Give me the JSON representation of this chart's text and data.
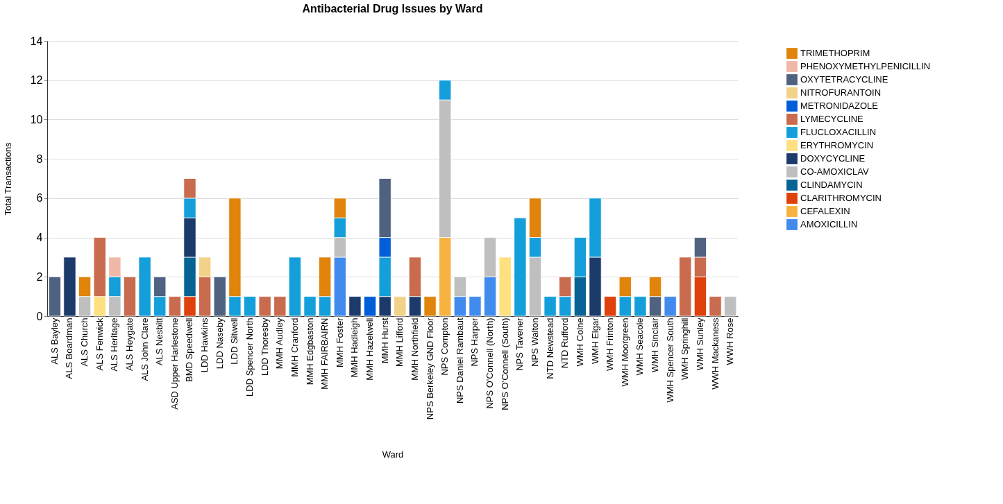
{
  "chart_data": {
    "type": "bar",
    "title": "Antibacterial Drug Issues by Ward",
    "xlabel": "Ward",
    "ylabel": "Total Transactions",
    "stacked": true,
    "legend": "right",
    "grid": "y",
    "ylim": [
      0,
      14
    ],
    "yticks": [
      0,
      2,
      4,
      6,
      8,
      10,
      12,
      14
    ],
    "categories": [
      "ALS Bayley",
      "ALS Boardman",
      "ALS Church",
      "ALS Fenwick",
      "ALS Heritage",
      "ALS Heygate",
      "ALS John Clare",
      "ALS Nesbitt",
      "ASD Upper Harlestone",
      "BMD Speedwell",
      "LDD Hawkins",
      "LDD Naseby",
      "LDD Sitwell",
      "LDD Spencer North",
      "LDD Thoresby",
      "MMH Audley",
      "MMH Cranford",
      "MMH Edgbaston",
      "MMH FAIRBAIRN",
      "MMH Foster",
      "MMH Hadleigh",
      "MMH Hazelwell",
      "MMH Hurst",
      "MMH Lifford",
      "MMH Northfield",
      "NPS Berkeley GND Floor",
      "NPS Compton",
      "NPS Daniel Rambaut",
      "NPS Harper",
      "NPS O'Connell (North)",
      "NPS O'Connell (South)",
      "NPS Tavener",
      "NPS Walton",
      "NTD Newstead",
      "NTD Rufford",
      "WMH Colne",
      "WMH Elgar",
      "WMH Frinton",
      "WMH Moorgreen",
      "WMH Seacole",
      "WMH Sinclair",
      "WMH Spencer South",
      "WMH Springhill",
      "WMH Sunley",
      "WWH Mackaness",
      "WWH Rose"
    ],
    "series": [
      {
        "name": "AMOXICILLIN",
        "color": "#428bee",
        "values": [
          null,
          null,
          null,
          null,
          null,
          null,
          null,
          null,
          null,
          null,
          null,
          null,
          null,
          null,
          null,
          null,
          null,
          null,
          null,
          3,
          null,
          null,
          null,
          null,
          null,
          null,
          null,
          1,
          1,
          2,
          null,
          null,
          null,
          null,
          null,
          null,
          null,
          null,
          null,
          null,
          null,
          1,
          null,
          null,
          null,
          null
        ]
      },
      {
        "name": "CEFALEXIN",
        "color": "#f8b240",
        "values": [
          null,
          null,
          null,
          null,
          null,
          null,
          null,
          null,
          null,
          null,
          null,
          null,
          null,
          null,
          null,
          null,
          null,
          null,
          null,
          null,
          null,
          null,
          null,
          null,
          null,
          null,
          4,
          null,
          null,
          null,
          null,
          null,
          null,
          null,
          null,
          null,
          null,
          null,
          null,
          null,
          null,
          null,
          null,
          null,
          null,
          null
        ]
      },
      {
        "name": "CLARITHROMYCIN",
        "color": "#de410b",
        "values": [
          null,
          null,
          null,
          null,
          null,
          null,
          null,
          null,
          null,
          1,
          null,
          null,
          null,
          null,
          null,
          null,
          null,
          null,
          null,
          null,
          null,
          null,
          null,
          null,
          null,
          null,
          null,
          null,
          null,
          null,
          null,
          null,
          null,
          null,
          null,
          null,
          null,
          1,
          null,
          null,
          null,
          null,
          null,
          2,
          null,
          null
        ]
      },
      {
        "name": "CLINDAMYCIN",
        "color": "#066494",
        "values": [
          null,
          null,
          null,
          null,
          null,
          null,
          null,
          null,
          null,
          2,
          null,
          null,
          null,
          null,
          null,
          null,
          null,
          null,
          null,
          null,
          null,
          null,
          null,
          null,
          null,
          null,
          null,
          null,
          null,
          null,
          null,
          null,
          null,
          null,
          null,
          2,
          null,
          null,
          null,
          null,
          null,
          null,
          null,
          null,
          null,
          null
        ]
      },
      {
        "name": "CO-AMOXICLAV",
        "color": "#bfbfbf",
        "values": [
          null,
          null,
          1,
          null,
          1,
          null,
          null,
          null,
          null,
          null,
          null,
          null,
          null,
          null,
          null,
          null,
          null,
          null,
          null,
          1,
          null,
          null,
          null,
          null,
          null,
          null,
          7,
          1,
          null,
          2,
          null,
          null,
          3,
          null,
          null,
          null,
          null,
          null,
          null,
          null,
          null,
          null,
          null,
          null,
          null,
          1
        ]
      },
      {
        "name": "DOXYCYCLINE",
        "color": "#1c3a6a",
        "values": [
          null,
          3,
          null,
          null,
          null,
          null,
          null,
          null,
          null,
          2,
          null,
          null,
          null,
          null,
          null,
          null,
          null,
          null,
          null,
          null,
          1,
          null,
          1,
          null,
          1,
          null,
          null,
          null,
          null,
          null,
          null,
          null,
          null,
          null,
          null,
          null,
          3,
          null,
          null,
          null,
          null,
          null,
          null,
          null,
          null,
          null
        ]
      },
      {
        "name": "ERYTHROMYCIN",
        "color": "#ffe080",
        "values": [
          null,
          null,
          null,
          1,
          null,
          null,
          null,
          null,
          null,
          null,
          null,
          null,
          null,
          null,
          null,
          null,
          null,
          null,
          null,
          null,
          null,
          null,
          null,
          null,
          null,
          null,
          null,
          null,
          null,
          null,
          3,
          null,
          null,
          null,
          null,
          null,
          null,
          null,
          null,
          null,
          null,
          null,
          null,
          null,
          null,
          null
        ]
      },
      {
        "name": "FLUCLOXACILLIN",
        "color": "#149fdb",
        "values": [
          null,
          null,
          null,
          null,
          1,
          null,
          3,
          1,
          null,
          1,
          null,
          null,
          1,
          1,
          null,
          null,
          3,
          1,
          1,
          1,
          null,
          null,
          2,
          null,
          null,
          null,
          1,
          null,
          null,
          null,
          null,
          5,
          1,
          1,
          1,
          2,
          3,
          null,
          1,
          1,
          null,
          null,
          null,
          null,
          null,
          null
        ]
      },
      {
        "name": "LYMECYCLINE",
        "color": "#c96b4e",
        "values": [
          null,
          null,
          null,
          3,
          null,
          2,
          null,
          null,
          1,
          1,
          2,
          null,
          null,
          null,
          1,
          1,
          null,
          null,
          null,
          null,
          null,
          null,
          null,
          null,
          2,
          null,
          null,
          null,
          null,
          null,
          null,
          null,
          null,
          null,
          1,
          null,
          null,
          null,
          null,
          null,
          null,
          null,
          3,
          1,
          1,
          null
        ]
      },
      {
        "name": "METRONIDAZOLE",
        "color": "#005ed9",
        "values": [
          null,
          null,
          null,
          null,
          null,
          null,
          null,
          null,
          null,
          null,
          null,
          null,
          null,
          null,
          null,
          null,
          null,
          null,
          null,
          null,
          null,
          1,
          1,
          null,
          null,
          null,
          null,
          null,
          null,
          null,
          null,
          null,
          null,
          null,
          null,
          null,
          null,
          null,
          null,
          null,
          null,
          null,
          null,
          null,
          null,
          null
        ]
      },
      {
        "name": "NITROFURANTOIN",
        "color": "#f2d189",
        "values": [
          null,
          null,
          null,
          null,
          null,
          null,
          null,
          null,
          null,
          null,
          1,
          null,
          null,
          null,
          null,
          null,
          null,
          null,
          null,
          null,
          null,
          null,
          null,
          1,
          null,
          null,
          null,
          null,
          null,
          null,
          null,
          null,
          null,
          null,
          null,
          null,
          null,
          null,
          null,
          null,
          null,
          null,
          null,
          null,
          null,
          null
        ]
      },
      {
        "name": "OXYTETRACYCLINE",
        "color": "#4f6280",
        "values": [
          2,
          null,
          null,
          null,
          null,
          null,
          null,
          1,
          null,
          null,
          null,
          2,
          null,
          null,
          null,
          null,
          null,
          null,
          null,
          null,
          null,
          null,
          3,
          null,
          null,
          null,
          null,
          null,
          null,
          null,
          null,
          null,
          null,
          null,
          null,
          null,
          null,
          null,
          null,
          null,
          1,
          null,
          null,
          1,
          null,
          null
        ]
      },
      {
        "name": "PHENOXYMETHYLPENICILLIN",
        "color": "#f0b8a8",
        "values": [
          null,
          null,
          null,
          null,
          1,
          null,
          null,
          null,
          null,
          null,
          null,
          null,
          null,
          null,
          null,
          null,
          null,
          null,
          null,
          null,
          null,
          null,
          null,
          null,
          null,
          null,
          null,
          null,
          null,
          null,
          null,
          null,
          null,
          null,
          null,
          null,
          null,
          null,
          null,
          null,
          null,
          null,
          null,
          null,
          null,
          null
        ]
      },
      {
        "name": "TRIMETHOPRIM",
        "color": "#e0840b",
        "values": [
          null,
          null,
          1,
          null,
          null,
          null,
          null,
          null,
          null,
          null,
          null,
          null,
          5,
          null,
          null,
          null,
          null,
          null,
          2,
          1,
          null,
          null,
          null,
          null,
          null,
          1,
          null,
          null,
          null,
          null,
          null,
          null,
          2,
          null,
          null,
          null,
          null,
          null,
          1,
          null,
          1,
          null,
          null,
          null,
          null,
          null
        ]
      }
    ]
  }
}
